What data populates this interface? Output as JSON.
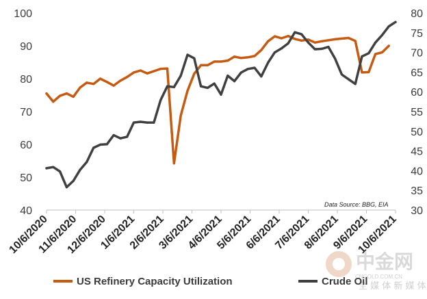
{
  "chart_data": {
    "type": "line",
    "x": [
      "10/6/2020",
      "10/13/2020",
      "10/20/2020",
      "10/27/2020",
      "11/3/2020",
      "11/10/2020",
      "11/17/2020",
      "11/24/2020",
      "12/1/2020",
      "12/8/2020",
      "12/15/2020",
      "12/22/2020",
      "12/29/2020",
      "1/5/2021",
      "1/12/2021",
      "1/19/2021",
      "1/26/2021",
      "2/2/2021",
      "2/9/2021",
      "2/16/2021",
      "2/23/2021",
      "3/2/2021",
      "3/9/2021",
      "3/16/2021",
      "3/23/2021",
      "3/30/2021",
      "4/6/2021",
      "4/13/2021",
      "4/20/2021",
      "4/27/2021",
      "5/4/2021",
      "5/11/2021",
      "5/18/2021",
      "5/25/2021",
      "6/1/2021",
      "6/8/2021",
      "6/15/2021",
      "6/22/2021",
      "6/29/2021",
      "7/6/2021",
      "7/13/2021",
      "7/20/2021",
      "7/27/2021",
      "8/3/2021",
      "8/10/2021",
      "8/17/2021",
      "8/24/2021",
      "8/31/2021",
      "9/7/2021",
      "9/14/2021",
      "9/21/2021",
      "9/28/2021",
      "10/5/2021"
    ],
    "x_tick_labels": [
      "10/6/2020",
      "11/6/2020",
      "12/6/2020",
      "1/6/2021",
      "2/6/2021",
      "3/6/2021",
      "4/6/2021",
      "5/6/2021",
      "6/6/2021",
      "7/6/2021",
      "8/6/2021",
      "9/6/2021",
      "10/6/2021"
    ],
    "y_left_ticks": [
      "40",
      "50",
      "60",
      "70",
      "80",
      "90",
      "100"
    ],
    "y_right_ticks": [
      "30",
      "35",
      "40",
      "45",
      "50",
      "55",
      "60",
      "65",
      "70",
      "75",
      "80"
    ],
    "ylim_left": [
      40,
      100
    ],
    "ylim_right": [
      30,
      80
    ],
    "series": [
      {
        "name": "US Refinery Capacity Utilization",
        "axis": "left",
        "color": "#c55a11",
        "values": [
          75.5,
          73.0,
          74.8,
          75.5,
          74.5,
          77.3,
          78.8,
          78.4,
          80.0,
          79.0,
          77.9,
          79.4,
          80.5,
          81.9,
          82.5,
          81.6,
          82.3,
          83.0,
          83.1,
          54.2,
          68.8,
          76.3,
          81.5,
          84.1,
          84.1,
          85.2,
          85.2,
          85.5,
          86.7,
          86.3,
          86.5,
          86.9,
          88.7,
          91.4,
          92.9,
          92.3,
          93.0,
          92.1,
          91.6,
          91.9,
          91.0,
          91.4,
          91.7,
          92.0,
          92.2,
          92.4,
          91.5,
          81.9,
          82.0,
          87.5,
          88.0,
          90.0,
          null
        ],
        "values_note": "weekly values; the series ends about one week before the last x label"
      },
      {
        "name": "Crude Oil",
        "axis": "right",
        "color": "#404040",
        "values": [
          40.6,
          40.9,
          39.8,
          35.8,
          37.4,
          40.2,
          42.2,
          45.8,
          46.6,
          46.7,
          49.0,
          48.2,
          48.6,
          52.2,
          52.4,
          52.2,
          52.2,
          57.9,
          61.4,
          61.2,
          64.1,
          69.4,
          68.5,
          61.4,
          61.0,
          62.1,
          59.3,
          64.1,
          62.7,
          64.9,
          65.8,
          66.1,
          63.9,
          67.4,
          70.0,
          71.0,
          72.3,
          75.1,
          74.6,
          72.5,
          70.8,
          70.9,
          71.4,
          68.4,
          64.4,
          63.2,
          62.0,
          69.0,
          69.8,
          72.5,
          74.4,
          76.6,
          77.7
        ]
      }
    ],
    "legend": {
      "position": "bottom",
      "entries": [
        "US Refinery Capacity Utilization",
        "Crude Oil"
      ]
    },
    "annotation": "Data Source: BBG, EIA",
    "grid": false
  },
  "watermark": {
    "main": "中金网",
    "url": "CNGOLD.COM.CN",
    "sub": "全 媒 体 新 媒 体"
  }
}
